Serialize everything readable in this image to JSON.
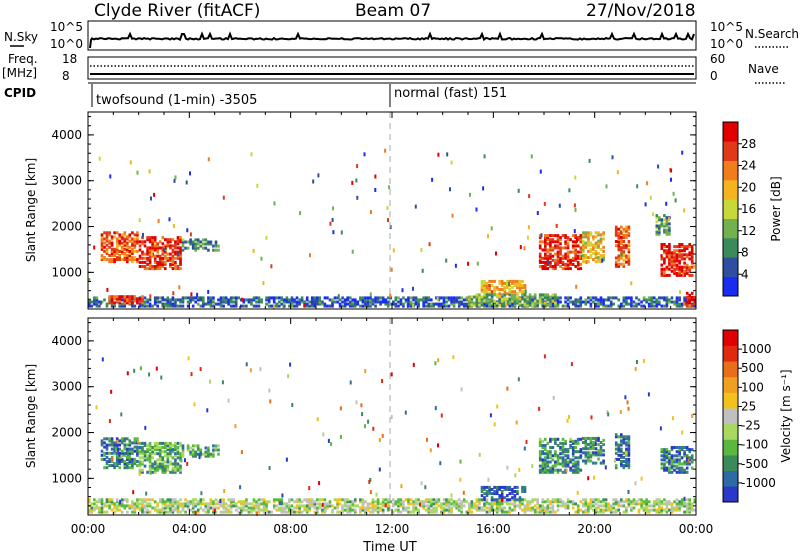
{
  "header": {
    "station": "Clyde River (fitACF)",
    "beam": "Beam 07",
    "date": "27/Nov/2018"
  },
  "top_panels": {
    "nsky": {
      "left_label": "N.Sky",
      "right_label": "N.Search",
      "left_ticks": [
        "10^5",
        "10^0"
      ],
      "right_ticks": [
        "10^5",
        "10^0"
      ]
    },
    "freq": {
      "left_label_1": "Freq.",
      "left_label_2": "[MHz]",
      "right_label": "Nave",
      "left_ticks": [
        "18",
        "8"
      ],
      "right_ticks": [
        "60",
        "0"
      ]
    },
    "cpid": {
      "label": "CPID",
      "segments": [
        "twofsound (1-min) -3505",
        "normal (fast) 151"
      ]
    }
  },
  "chart_data": [
    {
      "type": "heatmap",
      "name": "power",
      "ylabel": "Slant Range [km]",
      "ylim": [
        200,
        4500
      ],
      "yticks": [
        "1000",
        "2000",
        "3000",
        "4000"
      ],
      "xlim_hours": [
        0,
        24
      ],
      "mode_change_hour": 12,
      "colorbar": {
        "label": "Power [dB]",
        "ticks": [
          "4",
          "8",
          "12",
          "16",
          "20",
          "24",
          "28"
        ],
        "colors": [
          "#1a2cf0",
          "#2e4fa0",
          "#3a8a5a",
          "#72b050",
          "#c8d838",
          "#f3b41f",
          "#f07c1c",
          "#e03818",
          "#e00000"
        ]
      },
      "regions": [
        {
          "t": [
            0.5,
            2.0
          ],
          "r": [
            1200,
            1850
          ],
          "v": 0.78
        },
        {
          "t": [
            2.0,
            3.7
          ],
          "r": [
            1050,
            1750
          ],
          "v": 0.86
        },
        {
          "t": [
            3.7,
            5.1
          ],
          "r": [
            1450,
            1700
          ],
          "v": 0.3
        },
        {
          "t": [
            0,
            24
          ],
          "r": [
            230,
            420
          ],
          "v": 0.18
        },
        {
          "t": [
            0.8,
            2.2
          ],
          "r": [
            300,
            480
          ],
          "v": 0.85
        },
        {
          "t": [
            15.5,
            17.3
          ],
          "r": [
            500,
            800
          ],
          "v": 0.62
        },
        {
          "t": [
            15.0,
            18.5
          ],
          "r": [
            250,
            520
          ],
          "v": 0.4
        },
        {
          "t": [
            17.8,
            19.5
          ],
          "r": [
            1050,
            1800
          ],
          "v": 0.86
        },
        {
          "t": [
            19.5,
            20.4
          ],
          "r": [
            1200,
            1850
          ],
          "v": 0.55
        },
        {
          "t": [
            20.8,
            21.4
          ],
          "r": [
            1100,
            2000
          ],
          "v": 0.8
        },
        {
          "t": [
            22.6,
            23.9
          ],
          "r": [
            900,
            1600
          ],
          "v": 0.88
        },
        {
          "t": [
            23.6,
            24.0
          ],
          "r": [
            240,
            520
          ],
          "v": 0.92
        },
        {
          "t": [
            22.4,
            23.0
          ],
          "r": [
            1800,
            2250
          ],
          "v": 0.3
        }
      ]
    },
    {
      "type": "heatmap",
      "name": "velocity",
      "ylabel": "Slant Range [km]",
      "ylim": [
        200,
        4500
      ],
      "yticks": [
        "1000",
        "2000",
        "3000",
        "4000"
      ],
      "xlim_hours": [
        0,
        24
      ],
      "xticks": [
        "00:00",
        "04:00",
        "08:00",
        "12:00",
        "16:00",
        "20:00",
        "00:00"
      ],
      "xlabel": "Time UT",
      "colorbar": {
        "label": "Velocity [m s⁻¹]",
        "ticks": [
          "1000",
          "500",
          "100",
          "25",
          "-25",
          "-100",
          "-500",
          "-1000"
        ],
        "colors": [
          "#2a38c8",
          "#2e6aa6",
          "#3a8a5a",
          "#5ab840",
          "#a8d860",
          "#c0c0c0",
          "#f2c21c",
          "#f0a020",
          "#ea6d1a",
          "#e02a10",
          "#e00000"
        ]
      },
      "regions": [
        {
          "t": [
            0.5,
            2.0
          ],
          "r": [
            1200,
            1850
          ],
          "v": 0.18
        },
        {
          "t": [
            2.0,
            3.7
          ],
          "r": [
            1100,
            1750
          ],
          "v": 0.28
        },
        {
          "t": [
            3.7,
            5.1
          ],
          "r": [
            1450,
            1700
          ],
          "v": 0.3
        },
        {
          "t": [
            0,
            24
          ],
          "r": [
            230,
            520
          ],
          "v": 0.42
        },
        {
          "t": [
            15.5,
            17.3
          ],
          "r": [
            500,
            800
          ],
          "v": 0.08
        },
        {
          "t": [
            17.8,
            19.5
          ],
          "r": [
            1100,
            1850
          ],
          "v": 0.2
        },
        {
          "t": [
            19.5,
            20.4
          ],
          "r": [
            1300,
            1850
          ],
          "v": 0.22
        },
        {
          "t": [
            20.8,
            21.4
          ],
          "r": [
            1200,
            1950
          ],
          "v": 0.15
        },
        {
          "t": [
            22.6,
            23.9
          ],
          "r": [
            1100,
            1650
          ],
          "v": 0.16
        }
      ]
    }
  ]
}
